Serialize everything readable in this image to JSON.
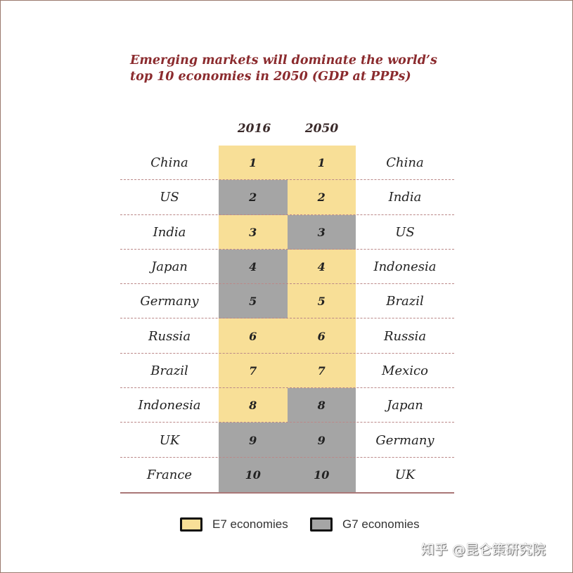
{
  "chart_data": {
    "type": "table",
    "title": "Emerging markets will dominate the world’s top 10 economies in 2050 (GDP at PPPs)",
    "columns": [
      "2016",
      "2050"
    ],
    "colors": {
      "E7": "#f8df97",
      "G7": "#a5a5a5"
    },
    "rows": [
      {
        "rank": "1",
        "c2016": "China",
        "g2016": "E7",
        "c2050": "China",
        "g2050": "E7"
      },
      {
        "rank": "2",
        "c2016": "US",
        "g2016": "G7",
        "c2050": "India",
        "g2050": "E7"
      },
      {
        "rank": "3",
        "c2016": "India",
        "g2016": "E7",
        "c2050": "US",
        "g2050": "G7"
      },
      {
        "rank": "4",
        "c2016": "Japan",
        "g2016": "G7",
        "c2050": "Indonesia",
        "g2050": "E7"
      },
      {
        "rank": "5",
        "c2016": "Germany",
        "g2016": "G7",
        "c2050": "Brazil",
        "g2050": "E7"
      },
      {
        "rank": "6",
        "c2016": "Russia",
        "g2016": "E7",
        "c2050": "Russia",
        "g2050": "E7"
      },
      {
        "rank": "7",
        "c2016": "Brazil",
        "g2016": "E7",
        "c2050": "Mexico",
        "g2050": "E7"
      },
      {
        "rank": "8",
        "c2016": "Indonesia",
        "g2016": "E7",
        "c2050": "Japan",
        "g2050": "G7"
      },
      {
        "rank": "9",
        "c2016": "UK",
        "g2016": "G7",
        "c2050": "Germany",
        "g2050": "G7"
      },
      {
        "rank": "10",
        "c2016": "France",
        "g2016": "G7",
        "c2050": "UK",
        "g2050": "G7"
      }
    ],
    "legend": [
      {
        "key": "E7",
        "label": "E7 economies"
      },
      {
        "key": "G7",
        "label": "G7 economies"
      }
    ]
  },
  "watermark": "知乎 @昆仑策研究院"
}
